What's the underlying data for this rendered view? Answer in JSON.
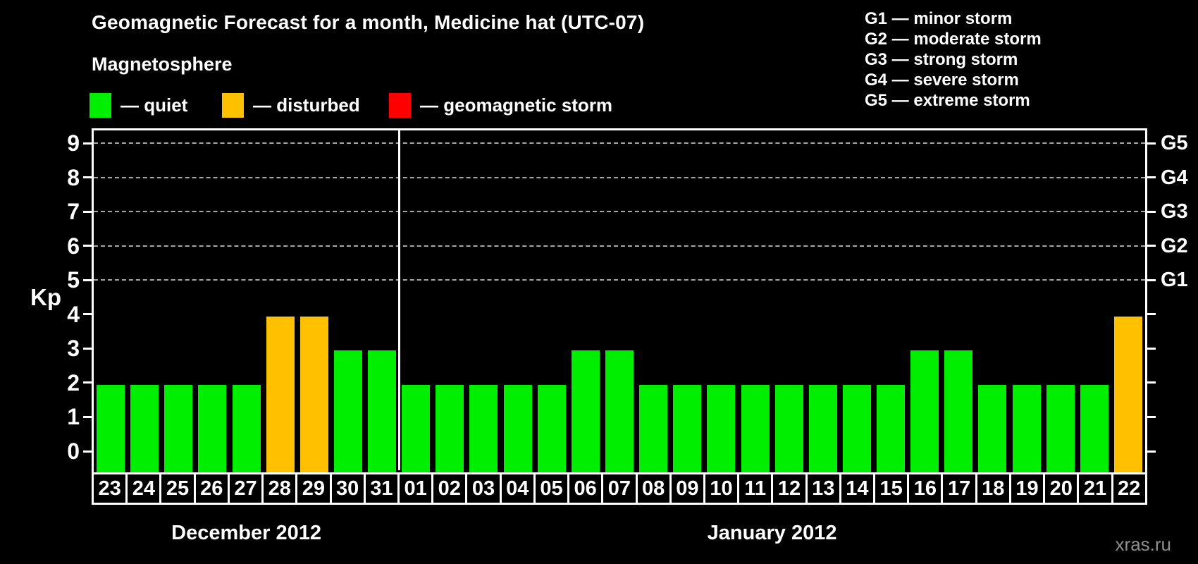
{
  "header": {
    "title": "Geomagnetic Forecast for a month, Medicine hat (UTC-07)",
    "subtitle": "Magnetosphere"
  },
  "legend": {
    "items": [
      {
        "name": "quiet",
        "label": "— quiet",
        "color": "#00EE00"
      },
      {
        "name": "disturbed",
        "label": "— disturbed",
        "color": "#FFC000"
      },
      {
        "name": "storm",
        "label": "— geomagnetic storm",
        "color": "#FF0000"
      }
    ]
  },
  "g_legend": {
    "lines": [
      "G1 — minor storm",
      "G2 — moderate storm",
      "G3 — strong storm",
      "G4 — severe storm",
      "G5 — extreme storm"
    ]
  },
  "watermark": "xras.ru",
  "chart_data": {
    "type": "bar",
    "title": "Geomagnetic Forecast for a month, Medicine hat (UTC-07)",
    "ylabel": "Kp",
    "ylim": [
      0,
      9
    ],
    "yticks": [
      0,
      1,
      2,
      3,
      4,
      5,
      6,
      7,
      8,
      9
    ],
    "grid_levels": [
      5,
      6,
      7,
      8,
      9
    ],
    "grid_style": "dashed",
    "legend_position": "top",
    "right_axis_labels": [
      {
        "label": "G5",
        "kp": 9
      },
      {
        "label": "G4",
        "kp": 8
      },
      {
        "label": "G3",
        "kp": 7
      },
      {
        "label": "G2",
        "kp": 6
      },
      {
        "label": "G1",
        "kp": 5
      }
    ],
    "state_colors": {
      "quiet": "#00EE00",
      "disturbed": "#FFC000",
      "storm": "#FF0000"
    },
    "months": [
      {
        "label": "December 2012",
        "days": [
          "23",
          "24",
          "25",
          "26",
          "27",
          "28",
          "29",
          "30",
          "31"
        ],
        "values": [
          2,
          2,
          2,
          2,
          2,
          4,
          4,
          3,
          3
        ],
        "states": [
          "quiet",
          "quiet",
          "quiet",
          "quiet",
          "quiet",
          "disturbed",
          "disturbed",
          "quiet",
          "quiet"
        ]
      },
      {
        "label": "January 2012",
        "days": [
          "01",
          "02",
          "03",
          "04",
          "05",
          "06",
          "07",
          "08",
          "09",
          "10",
          "11",
          "12",
          "13",
          "14",
          "15",
          "16",
          "17",
          "18",
          "19",
          "20",
          "21",
          "22"
        ],
        "values": [
          2,
          2,
          2,
          2,
          2,
          3,
          3,
          2,
          2,
          2,
          2,
          2,
          2,
          2,
          2,
          3,
          3,
          2,
          2,
          2,
          2,
          4
        ],
        "states": [
          "quiet",
          "quiet",
          "quiet",
          "quiet",
          "quiet",
          "quiet",
          "quiet",
          "quiet",
          "quiet",
          "quiet",
          "quiet",
          "quiet",
          "quiet",
          "quiet",
          "quiet",
          "quiet",
          "quiet",
          "quiet",
          "quiet",
          "quiet",
          "quiet",
          "disturbed"
        ]
      }
    ]
  }
}
